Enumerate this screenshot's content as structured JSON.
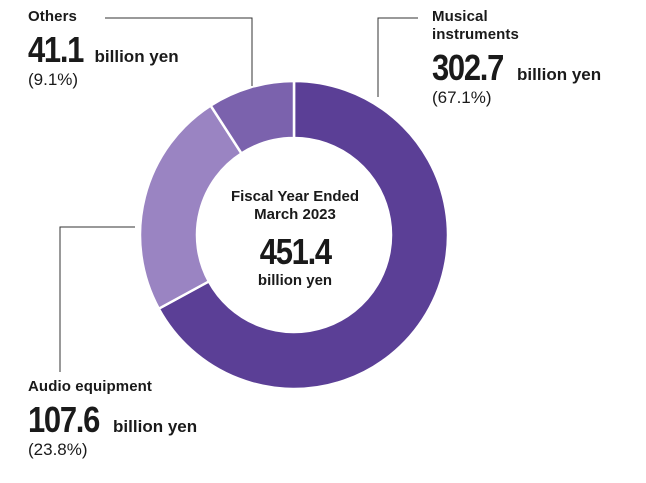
{
  "chart_data": {
    "type": "pie",
    "style": "donut",
    "center_title": "Fiscal Year Ended March 2023",
    "center_title_lines": [
      "Fiscal Year Ended",
      "March 2023"
    ],
    "total": {
      "value": "451.4",
      "unit": "billion yen"
    },
    "slices": [
      {
        "category": "Musical instruments",
        "category_lines": [
          "Musical",
          "instruments"
        ],
        "value": 302.7,
        "value_text": "302.7",
        "unit": "billion yen",
        "percent": "(67.1%)",
        "color": "#5b3f96"
      },
      {
        "category": "Audio equipment",
        "category_lines": [
          "Audio equipment"
        ],
        "value": 107.6,
        "value_text": "107.6",
        "unit": "billion yen",
        "percent": "(23.8%)",
        "color": "#9a84c2"
      },
      {
        "category": "Others",
        "category_lines": [
          "Others"
        ],
        "value": 41.1,
        "value_text": "41.1",
        "unit": "billion yen",
        "percent": "(9.1%)",
        "color": "#7b62ad"
      }
    ]
  }
}
